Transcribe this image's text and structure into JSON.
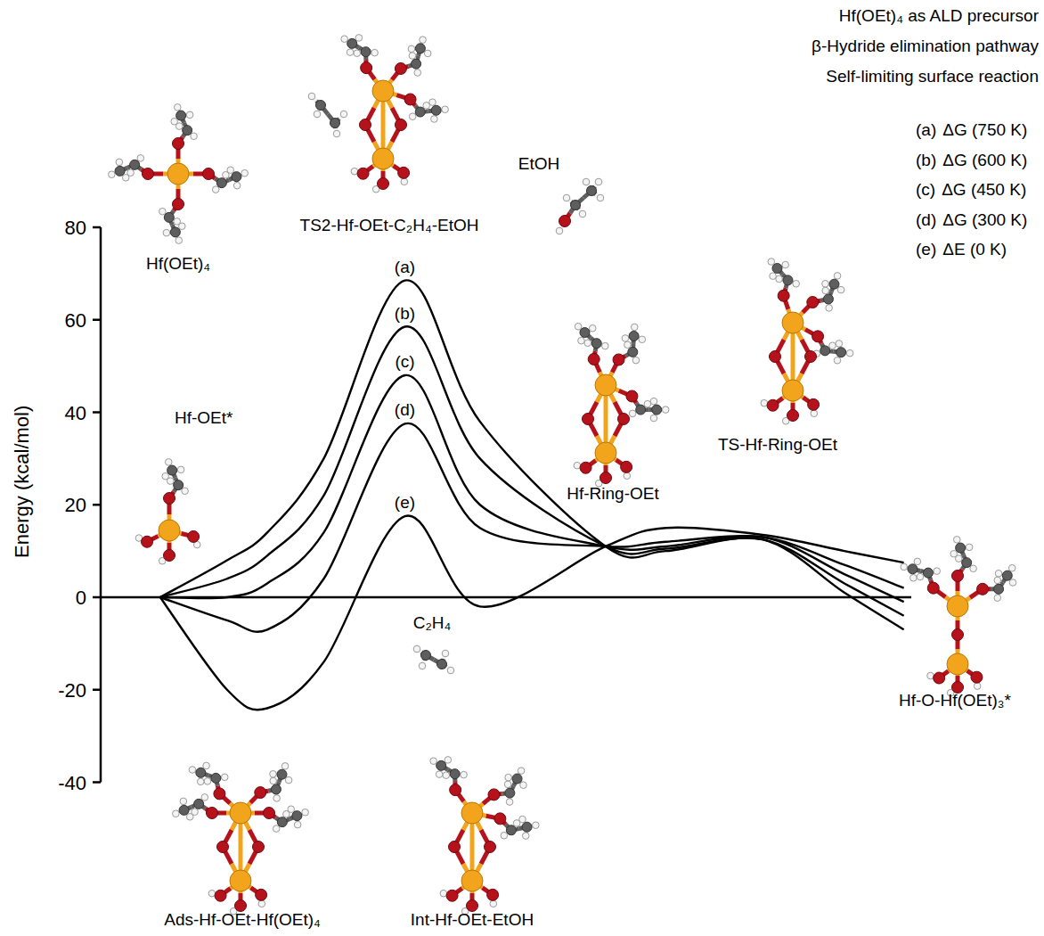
{
  "chart_data": {
    "type": "line",
    "y_label": "Energy (kcal/mol)",
    "x": [
      0,
      0.9,
      1.44,
      2.2,
      3.29,
      4.3,
      5.99,
      6.8,
      8.1,
      9.2,
      10
    ],
    "xlim": [
      -0.8,
      10.1
    ],
    "ylim": [
      -40,
      80
    ],
    "yticks": [
      -40,
      -20,
      0,
      20,
      40,
      60,
      80
    ],
    "tick_labels": "y",
    "grid": false,
    "legend": "top-right",
    "annotations": [
      "Hf(OEt)₄ as ALD precursor",
      "β-Hydride elimination pathway",
      "Self-limiting surface reaction"
    ],
    "structure_labels": [
      "Hf(OEt)₄",
      "TS2-Hf-OEt-C₂H₄-EtOH",
      "EtOH",
      "Hf-OEt*",
      "Hf-Ring-OEt",
      "TS-Hf-Ring-OEt",
      "C₂H₄",
      "Hf-O-Hf(OEt)₃*",
      "Ads-Hf-OEt-Hf(OEt)₄",
      "Int-Hf-OEt-EtOH"
    ],
    "series": [
      {
        "label": "(a)",
        "name": "ΔG (750 K)",
        "color": "#000000",
        "values": [
          0,
          8,
          14,
          30,
          68.5,
          38,
          11,
          10,
          12.5,
          1,
          -7
        ]
      },
      {
        "label": "(b)",
        "name": "ΔG (600 K)",
        "color": "#000000",
        "values": [
          0,
          4,
          9,
          22,
          58.5,
          30,
          11,
          10.5,
          12.5,
          3,
          -4
        ]
      },
      {
        "label": "(c)",
        "name": "ΔG (450 K)",
        "color": "#000000",
        "values": [
          0,
          0,
          3,
          14,
          48,
          20,
          11,
          11,
          13,
          5,
          -1
        ]
      },
      {
        "label": "(d)",
        "name": "ΔG (300 K)",
        "color": "#000000",
        "values": [
          0,
          -5,
          -7,
          4,
          37.5,
          15,
          11,
          12,
          13,
          7,
          2
        ]
      },
      {
        "label": "(e)",
        "name": "ΔE (0 K)",
        "color": "#000000",
        "values": [
          0,
          -20,
          -24,
          -14,
          17.5,
          -2,
          11,
          15,
          13.5,
          10,
          7.5
        ]
      }
    ]
  }
}
